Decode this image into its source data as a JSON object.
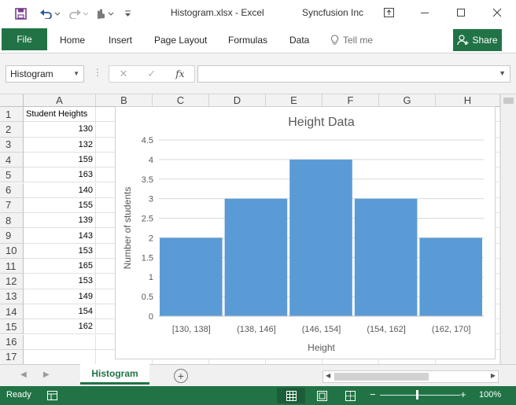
{
  "window": {
    "title": "Histogram.xlsx - Excel",
    "account": "Syncfusion Inc"
  },
  "ribbon": {
    "file_label": "File",
    "tabs": [
      "Home",
      "Insert",
      "Page Layout",
      "Formulas",
      "Data"
    ],
    "tell_me": "Tell me",
    "share_label": "Share"
  },
  "formula_bar": {
    "name_box": "Histogram",
    "cancel_symbol": "✕",
    "enter_symbol": "✓",
    "fx_label": "fx",
    "formula": ""
  },
  "grid": {
    "columns": [
      "A",
      "B",
      "C",
      "D",
      "E",
      "F",
      "G",
      "H"
    ],
    "rows": [
      "1",
      "2",
      "3",
      "4",
      "5",
      "6",
      "7",
      "8",
      "9",
      "10",
      "11",
      "12",
      "13",
      "14",
      "15",
      "16",
      "17"
    ],
    "column_a": [
      "Student Heights",
      "130",
      "132",
      "159",
      "163",
      "140",
      "155",
      "139",
      "143",
      "153",
      "165",
      "153",
      "149",
      "154",
      "162",
      "",
      ""
    ]
  },
  "chart_data": {
    "type": "bar",
    "title": "Height Data",
    "xlabel": "Height",
    "ylabel": "Number of students",
    "categories": [
      "[130, 138]",
      "(138, 146]",
      "(146, 154]",
      "(154, 162]",
      "(162, 170]"
    ],
    "values": [
      2,
      3,
      4,
      3,
      2
    ],
    "ylim": [
      0,
      4.5
    ],
    "yticks": [
      "0",
      "0.5",
      "1",
      "1.5",
      "2",
      "2.5",
      "3",
      "3.5",
      "4",
      "4.5"
    ],
    "grid": true,
    "bar_color": "#5b9bd5"
  },
  "sheets": {
    "tabs": [
      "Histogram"
    ],
    "active": "Histogram"
  },
  "status": {
    "ready": "Ready",
    "zoom": "100%",
    "zoom_minus": "−",
    "zoom_plus": "+"
  },
  "colors": {
    "excel_green": "#217346",
    "status_dark": "#1a5e39"
  }
}
